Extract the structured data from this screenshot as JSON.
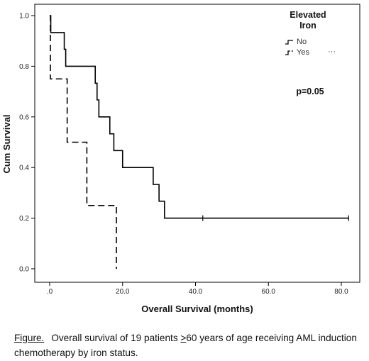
{
  "chart_data": {
    "type": "line",
    "subtype": "kaplan-meier",
    "xlabel": "Overall Survival (months)",
    "ylabel": "Cum Survival",
    "xlim": [
      0,
      84
    ],
    "ylim": [
      0,
      1.03
    ],
    "xticks": [
      0,
      20,
      40,
      60,
      80
    ],
    "xtick_labels": [
      ".0",
      "20.0",
      "40.0",
      "60.0",
      "80.0"
    ],
    "yticks": [
      0,
      0.2,
      0.4,
      0.6,
      0.8,
      1.0
    ],
    "ytick_labels": [
      "0.0",
      "0.2",
      "0.4",
      "0.6",
      "0.8",
      "1.0"
    ],
    "grid": false,
    "legend": {
      "title_line1": "Elevated",
      "title_line2": "Iron",
      "placement": "top-right",
      "entries": [
        "No",
        "Yes"
      ],
      "yes_censor_marker": "···"
    },
    "annotation": "p=0.05",
    "series": [
      {
        "name": "No",
        "style": "solid",
        "color": "#000000",
        "steps": [
          [
            0,
            1.0
          ],
          [
            0.3,
            0.933
          ],
          [
            4,
            0.867
          ],
          [
            4.4,
            0.8
          ],
          [
            12.5,
            0.733
          ],
          [
            13,
            0.667
          ],
          [
            13.5,
            0.6
          ],
          [
            16.5,
            0.533
          ],
          [
            17.6,
            0.467
          ],
          [
            20,
            0.4
          ],
          [
            28.4,
            0.333
          ],
          [
            30,
            0.267
          ],
          [
            31.5,
            0.2
          ],
          [
            82,
            0.2
          ]
        ],
        "censored": [
          [
            42,
            0.2
          ],
          [
            82,
            0.2
          ]
        ]
      },
      {
        "name": "Yes",
        "style": "dashed",
        "color": "#000000",
        "steps": [
          [
            0,
            1.0
          ],
          [
            0.2,
            0.75
          ],
          [
            4.8,
            0.5
          ],
          [
            10.2,
            0.25
          ],
          [
            18.3,
            0.0
          ]
        ],
        "censored": []
      }
    ]
  },
  "caption": {
    "label": "Figure",
    "label_suffix": ".",
    "text_before": "Overall survival of 19 patients ",
    "ge_symbol": ">",
    "text_after": "60 years of age receiving AML induction chemotherapy by iron status."
  }
}
